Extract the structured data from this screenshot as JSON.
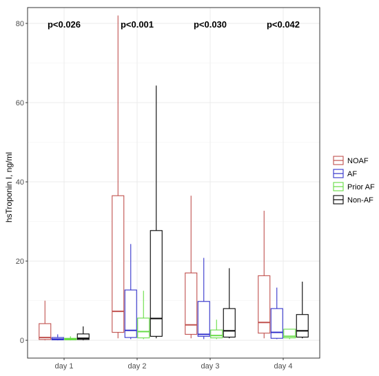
{
  "chart_data": {
    "type": "boxplot",
    "ylabel": "hsTroponin I, ng/ml",
    "xlabel": "",
    "ylim": [
      -4.5,
      84
    ],
    "yticks": [
      0,
      20,
      40,
      60,
      80
    ],
    "grid": true,
    "legend_position": "right",
    "categories": [
      "day 1",
      "day 2",
      "day 3",
      "day 4"
    ],
    "pvalues": [
      "p<0.026",
      "p<0.001",
      "p<0.030",
      "p<0.042"
    ],
    "series": [
      {
        "name": "NOAF",
        "color": "#c0504d",
        "boxes": [
          {
            "min": 0,
            "q1": 0.2,
            "median": 0.7,
            "q3": 4.2,
            "max": 10
          },
          {
            "min": 0.5,
            "q1": 2,
            "median": 7.3,
            "q3": 36.5,
            "max": 82
          },
          {
            "min": 0.5,
            "q1": 1.5,
            "median": 3.9,
            "q3": 17,
            "max": 36.5
          },
          {
            "min": 0.5,
            "q1": 1.8,
            "median": 4.5,
            "q3": 16.3,
            "max": 32.7
          }
        ]
      },
      {
        "name": "AF",
        "color": "#3333cc",
        "boxes": [
          {
            "min": 0,
            "q1": 0.1,
            "median": 0.3,
            "q3": 0.7,
            "max": 1.5
          },
          {
            "min": 0.3,
            "q1": 0.7,
            "median": 2.5,
            "q3": 12.7,
            "max": 24.3
          },
          {
            "min": 0.3,
            "q1": 1,
            "median": 1.5,
            "q3": 9.8,
            "max": 20.8
          },
          {
            "min": 0.3,
            "q1": 0.5,
            "median": 2,
            "q3": 8,
            "max": 13.3
          }
        ]
      },
      {
        "name": "Prior AF",
        "color": "#66dd44",
        "boxes": [
          {
            "min": 0,
            "q1": 0.1,
            "median": 0.3,
            "q3": 0.5,
            "max": 1
          },
          {
            "min": 0.3,
            "q1": 0.6,
            "median": 2.2,
            "q3": 5.6,
            "max": 12.5
          },
          {
            "min": 0.3,
            "q1": 0.6,
            "median": 1.2,
            "q3": 2.6,
            "max": 5.2
          },
          {
            "min": 0.3,
            "q1": 0.6,
            "median": 1,
            "q3": 2.8,
            "max": 2.9
          }
        ]
      },
      {
        "name": "Non-AF",
        "color": "#000000",
        "boxes": [
          {
            "min": 0,
            "q1": 0.2,
            "median": 0.5,
            "q3": 1.6,
            "max": 3.5
          },
          {
            "min": 0.5,
            "q1": 1,
            "median": 5.5,
            "q3": 27.7,
            "max": 64.3
          },
          {
            "min": 0.5,
            "q1": 0.8,
            "median": 2.4,
            "q3": 8,
            "max": 18.2
          },
          {
            "min": 0.5,
            "q1": 0.8,
            "median": 2.4,
            "q3": 6.5,
            "max": 14.8
          }
        ]
      }
    ]
  }
}
